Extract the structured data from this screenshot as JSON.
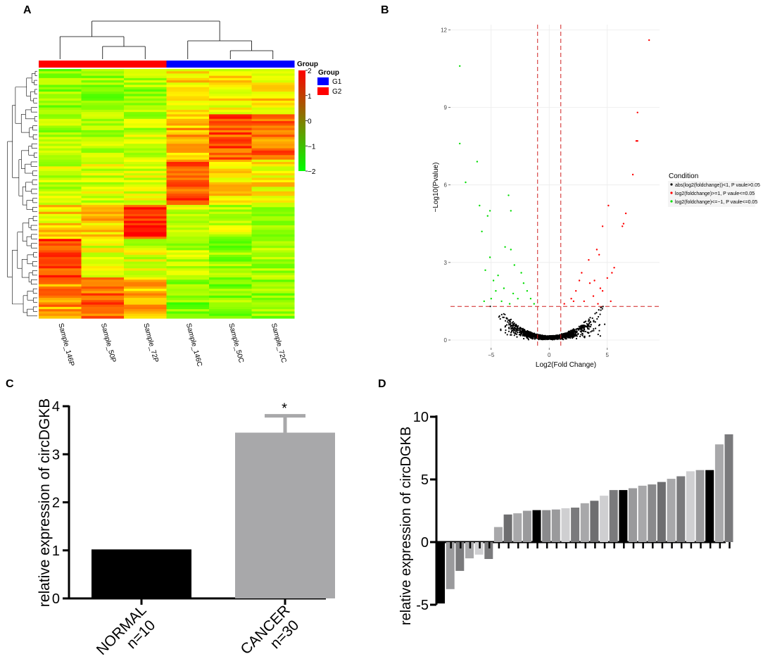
{
  "chart_data": [
    {
      "panel": "A",
      "type": "heatmap",
      "title": "",
      "columns": [
        "Sample_146P",
        "Sample_50P",
        "Sample_72P",
        "Sample_146C",
        "Sample_50C",
        "Sample_72C"
      ],
      "column_groups": [
        "G2",
        "G2",
        "G2",
        "G1",
        "G1",
        "G1"
      ],
      "group_annotation_label": "Group",
      "legend": {
        "title": "Group",
        "entries": [
          {
            "name": "G1",
            "color": "#0000ff"
          },
          {
            "name": "G2",
            "color": "#ff0000"
          }
        ]
      },
      "colorbar": {
        "ticks": [
          "2",
          "1",
          "0",
          "−1",
          "−2"
        ],
        "min": -2,
        "max": 2,
        "low_color": "#00ff00",
        "high_color": "#ff0000"
      }
    },
    {
      "panel": "B",
      "type": "scatter",
      "title": "",
      "xlabel": "Log2(Fold Change)",
      "ylabel": "−Log10(Pvalue)",
      "xlim": [
        -8.5,
        9.5
      ],
      "ylim": [
        -0.3,
        12.2
      ],
      "x_ticks": [
        "−5",
        "0",
        "5"
      ],
      "y_ticks": [
        "0",
        "3",
        "6",
        "9",
        "12"
      ],
      "thresholds": {
        "fold_change_lines": [
          -1,
          1
        ],
        "pvalue_line": 1.3
      },
      "legend": {
        "title": "Condition",
        "entries": [
          {
            "label": "abs(log2(foldchange))<1, P vaule>0.05",
            "color": "#000000"
          },
          {
            "label": "log2(foldchange)>=1, P vaule<=0.05",
            "color": "#ff0000"
          },
          {
            "label": "log2(foldchange)<=−1, P vaule<=0.05",
            "color": "#00dd00"
          }
        ]
      },
      "series": [
        {
          "name": "up",
          "color": "#ff0000",
          "points": [
            [
              8.6,
              11.6
            ],
            [
              7.6,
              8.8
            ],
            [
              7.5,
              7.7
            ],
            [
              7.6,
              7.7
            ],
            [
              7.2,
              6.4
            ],
            [
              6.6,
              4.9
            ],
            [
              6.4,
              4.5
            ],
            [
              6.3,
              4.4
            ],
            [
              5.1,
              5.2
            ],
            [
              4.6,
              4.4
            ],
            [
              4.1,
              3.5
            ],
            [
              5.6,
              2.8
            ],
            [
              5.4,
              2.6
            ],
            [
              5.0,
              2.4
            ],
            [
              4.3,
              3.3
            ],
            [
              3.4,
              3.1
            ],
            [
              2.6,
              2.3
            ],
            [
              4.6,
              1.9
            ],
            [
              3.8,
              1.7
            ],
            [
              2.3,
              1.9
            ],
            [
              1.9,
              1.6
            ],
            [
              2.1,
              1.5
            ],
            [
              4.2,
              1.4
            ],
            [
              3.0,
              1.5
            ],
            [
              1.3,
              1.4
            ],
            [
              3.9,
              2.3
            ],
            [
              4.4,
              2.0
            ],
            [
              5.3,
              1.5
            ],
            [
              2.8,
              2.6
            ],
            [
              3.5,
              2.2
            ]
          ]
        },
        {
          "name": "down",
          "color": "#00dd00",
          "points": [
            [
              -7.7,
              10.6
            ],
            [
              -7.7,
              7.6
            ],
            [
              -6.2,
              6.9
            ],
            [
              -7.2,
              6.1
            ],
            [
              -6.0,
              5.2
            ],
            [
              -5.1,
              5.0
            ],
            [
              -5.3,
              4.8
            ],
            [
              -3.5,
              5.6
            ],
            [
              -3.3,
              5.0
            ],
            [
              -5.8,
              4.2
            ],
            [
              -3.8,
              3.6
            ],
            [
              -3.3,
              3.5
            ],
            [
              -5.1,
              3.2
            ],
            [
              -5.5,
              2.7
            ],
            [
              -4.4,
              2.5
            ],
            [
              -3.0,
              2.9
            ],
            [
              -2.4,
              2.6
            ],
            [
              -3.9,
              2.0
            ],
            [
              -3.1,
              1.8
            ],
            [
              -1.9,
              1.9
            ],
            [
              -4.6,
              1.9
            ],
            [
              -5.6,
              1.5
            ],
            [
              -2.7,
              1.6
            ],
            [
              -1.6,
              1.6
            ],
            [
              -4.1,
              1.5
            ],
            [
              -1.3,
              1.4
            ],
            [
              -3.4,
              1.4
            ],
            [
              -5.0,
              1.6
            ],
            [
              -2.2,
              2.2
            ],
            [
              -4.8,
              2.3
            ]
          ]
        }
      ],
      "background_series": {
        "name": "not significant",
        "color": "#000000",
        "x_range": [
          -6,
          6
        ],
        "y_range": [
          0,
          1.3
        ]
      }
    },
    {
      "panel": "C",
      "type": "bar",
      "title": "",
      "categories": [
        "NORMAL\nn=10",
        "CANCER\nn=30"
      ],
      "category_lines": [
        [
          "NORMAL",
          "n=10"
        ],
        [
          "CANCER",
          "n=30"
        ]
      ],
      "values": [
        1.02,
        3.45
      ],
      "errors": [
        0,
        0.35
      ],
      "colors": [
        "#000000",
        "#a8a8aa"
      ],
      "significance": [
        "",
        "*"
      ],
      "ylabel": "relative expression of circDGKB",
      "ylim": [
        0,
        4
      ],
      "y_ticks": [
        "0",
        "1",
        "2",
        "3",
        "4"
      ]
    },
    {
      "panel": "D",
      "type": "bar",
      "title": "",
      "values": [
        -4.9,
        -3.75,
        -2.3,
        -1.3,
        -1.0,
        -1.35,
        1.2,
        2.2,
        2.3,
        2.5,
        2.55,
        2.55,
        2.6,
        2.7,
        2.75,
        3.1,
        3.3,
        3.7,
        4.15,
        4.15,
        4.3,
        4.5,
        4.6,
        4.8,
        5.05,
        5.25,
        5.65,
        5.75,
        5.75,
        7.8,
        8.6
      ],
      "colors": [
        "#000000",
        "#9a9a9c",
        "#7a7a7c",
        "#a8a8aa",
        "#cfcfd1",
        "#7a7a7c",
        "#a8a8aa",
        "#6e6e70",
        "#a8a8aa",
        "#9a9a9c",
        "#000000",
        "#8a8a8c",
        "#9a9a9c",
        "#cfcfd1",
        "#7a7a7c",
        "#a8a8aa",
        "#6e6e70",
        "#cfcfd1",
        "#7a7a7c",
        "#000000",
        "#9a9a9c",
        "#a8a8aa",
        "#8a8a8c",
        "#6e6e70",
        "#a8a8aa",
        "#7a7a7c",
        "#cfcfd1",
        "#9a9a9c",
        "#000000",
        "#a8a8aa",
        "#7a7a7c"
      ],
      "ylabel": "relative expression of circDGKB",
      "ylim": [
        -5,
        10
      ],
      "y_ticks": [
        "10",
        "5",
        "0",
        "-5"
      ]
    }
  ],
  "panel_labels": {
    "a": "A",
    "b": "B",
    "c": "C",
    "d": "D"
  }
}
